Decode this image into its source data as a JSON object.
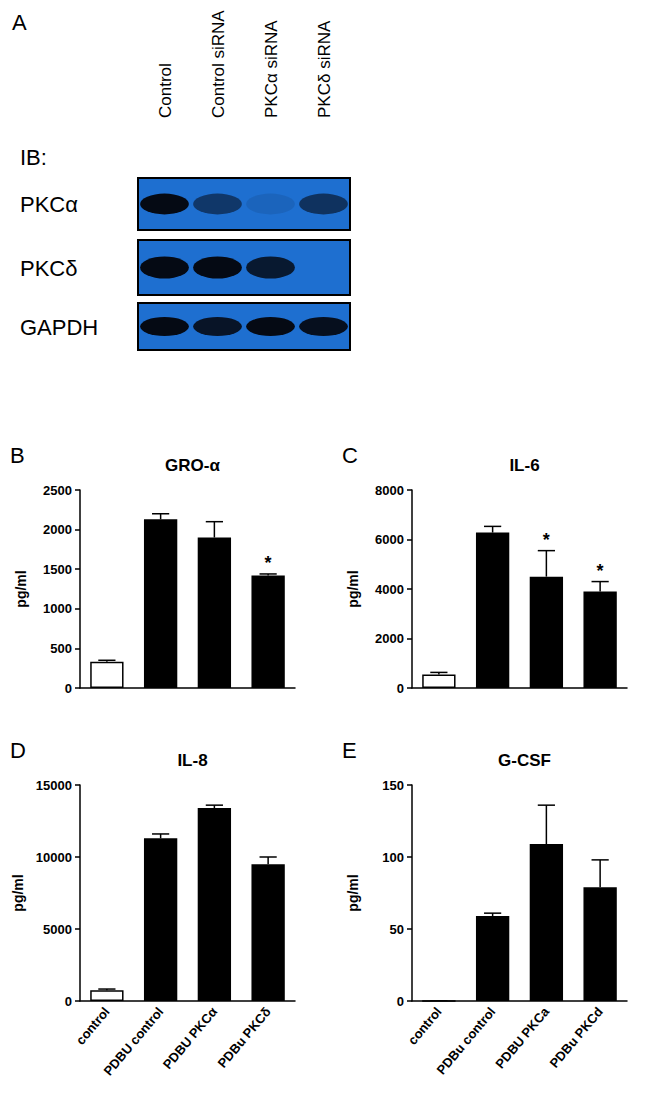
{
  "blot": {
    "panel": "A",
    "label": "IB:",
    "lanes": [
      "Control",
      "Control siRNA",
      "PKCα siRNA",
      "PKCδ siRNA"
    ],
    "rows": [
      {
        "name": "PKCα",
        "intensity": [
          1,
          0.55,
          0.1,
          0.6
        ]
      },
      {
        "name": "PKCδ",
        "intensity": [
          1,
          1,
          0.85,
          0
        ]
      },
      {
        "name": "GAPDH",
        "intensity": [
          1,
          0.9,
          1,
          0.95
        ]
      }
    ]
  },
  "chart_data": [
    {
      "type": "bar",
      "panel": "B",
      "title": "GRO-α",
      "y_label": "pg/ml",
      "categories": [
        null,
        null,
        null,
        null
      ],
      "values": [
        330,
        2130,
        1900,
        1420
      ],
      "errors": [
        20,
        70,
        200,
        20
      ],
      "annotations": [
        null,
        null,
        null,
        "*"
      ],
      "colors": [
        "#ffffff",
        "#000000",
        "#000000",
        "#000000"
      ],
      "ylim": [
        0,
        2500
      ],
      "yticks": [
        0,
        500,
        1000,
        1500,
        2000,
        2500
      ],
      "grid": false,
      "tick_labels": "y"
    },
    {
      "type": "bar",
      "panel": "C",
      "title": "IL-6",
      "y_label": "pg/ml",
      "categories": [
        null,
        null,
        null,
        null
      ],
      "values": [
        550,
        6280,
        4500,
        3900
      ],
      "errors": [
        80,
        250,
        1050,
        400
      ],
      "annotations": [
        null,
        null,
        "*",
        "*"
      ],
      "colors": [
        "#ffffff",
        "#000000",
        "#000000",
        "#000000"
      ],
      "ylim": [
        0,
        8000
      ],
      "yticks": [
        0,
        2000,
        4000,
        6000,
        8000
      ],
      "grid": false,
      "tick_labels": "y"
    },
    {
      "type": "bar",
      "panel": "D",
      "title": "IL-8",
      "y_label": "pg/ml",
      "categories": [
        "control",
        "PDBU control",
        "PDBU PKCα",
        "PDBu PKCδ"
      ],
      "values": [
        750,
        11300,
        13400,
        9500
      ],
      "errors": [
        80,
        300,
        200,
        500
      ],
      "annotations": [
        null,
        null,
        null,
        null
      ],
      "colors": [
        "#ffffff",
        "#000000",
        "#000000",
        "#000000"
      ],
      "ylim": [
        0,
        15000
      ],
      "yticks": [
        0,
        5000,
        10000,
        15000
      ],
      "grid": false
    },
    {
      "type": "bar",
      "panel": "E",
      "title": "G-CSF",
      "y_label": "pg/ml",
      "categories": [
        "control",
        "PDBu control",
        "PDBU PKCa",
        "PDBu PKCd"
      ],
      "values": [
        0,
        59,
        109,
        79
      ],
      "errors": [
        0,
        2,
        27,
        19
      ],
      "annotations": [
        null,
        null,
        null,
        null
      ],
      "colors": [
        "#ffffff",
        "#000000",
        "#000000",
        "#000000"
      ],
      "ylim": [
        0,
        150
      ],
      "yticks": [
        0,
        50,
        100,
        150
      ],
      "grid": false
    }
  ]
}
